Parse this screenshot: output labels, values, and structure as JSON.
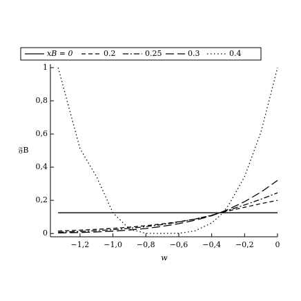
{
  "chart_data": {
    "type": "line",
    "x_label": "w",
    "y_label": "𝔉B",
    "x": [
      -1.333,
      -1.2,
      -1.1,
      -1.0,
      -0.9,
      -0.8,
      -0.7,
      -0.6,
      -0.5,
      -0.4,
      -0.35,
      -0.3,
      -0.2,
      -0.1,
      0
    ],
    "series": [
      {
        "name": "xB = 0",
        "color": "#000000",
        "values": [
          0.125,
          0.125,
          0.125,
          0.125,
          0.125,
          0.125,
          0.125,
          0.125,
          0.125,
          0.125,
          0.125,
          0.125,
          0.125,
          0.125,
          0.125
        ]
      },
      {
        "name": "0.2",
        "color": "#000000",
        "values": [
          0.015,
          0.02,
          0.025,
          0.031,
          0.038,
          0.047,
          0.058,
          0.071,
          0.087,
          0.109,
          0.125,
          0.136,
          0.158,
          0.18,
          0.2
        ]
      },
      {
        "name": "0.25",
        "color": "#000000",
        "values": [
          0.008,
          0.012,
          0.017,
          0.023,
          0.031,
          0.041,
          0.054,
          0.069,
          0.087,
          0.11,
          0.125,
          0.14,
          0.172,
          0.207,
          0.245
        ]
      },
      {
        "name": "0.3",
        "color": "#000000",
        "values": [
          0.003,
          0.006,
          0.009,
          0.014,
          0.021,
          0.03,
          0.043,
          0.059,
          0.08,
          0.107,
          0.125,
          0.145,
          0.192,
          0.25,
          0.32
        ]
      },
      {
        "name": "0.4",
        "color": "#000000",
        "values": [
          1,
          0.512,
          0.343,
          0.125,
          0.027,
          0.001,
          0,
          0.001,
          0.016,
          0.064,
          0.107,
          0.166,
          0.343,
          0.614,
          1
        ]
      }
    ],
    "xlim": [
      -1.38,
      0.0
    ],
    "ylim": [
      -0.02,
      1.0
    ],
    "xticks": [
      {
        "value": -1.2,
        "label": "−1,2"
      },
      {
        "value": -1.0,
        "label": "−1,0"
      },
      {
        "value": -0.8,
        "label": "−0,8"
      },
      {
        "value": -0.6,
        "label": "−0,6"
      },
      {
        "value": -0.4,
        "label": "−0,4"
      },
      {
        "value": -0.2,
        "label": "−0,2"
      },
      0
    ],
    "yticks": [
      0,
      {
        "value": 0.2,
        "label": "0,2"
      },
      {
        "value": 0.4,
        "label": "0,4"
      },
      {
        "value": 0.6,
        "label": "0,6"
      },
      {
        "value": 0.8,
        "label": "0,8"
      },
      1
    ],
    "legend": "top"
  }
}
